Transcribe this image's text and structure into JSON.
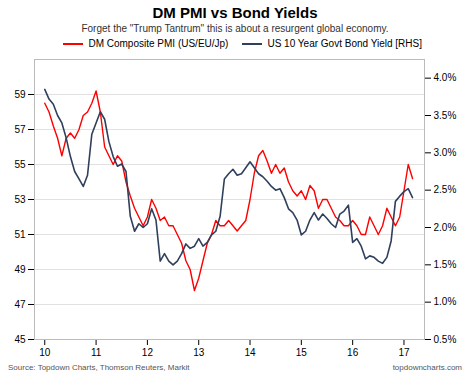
{
  "chart_data": {
    "type": "line",
    "title": "DM PMI vs Bond Yields",
    "subtitle": "Forget the \"Trump Tantrum\" this is about a resurgent global economy.",
    "annotations": [
      "Source: Topdown Charts, Thomson Reuters, Markit",
      "topdowncharts.com"
    ],
    "x": [
      10.0,
      10.083,
      10.167,
      10.25,
      10.333,
      10.417,
      10.5,
      10.583,
      10.667,
      10.75,
      10.833,
      10.917,
      11.0,
      11.083,
      11.167,
      11.25,
      11.333,
      11.417,
      11.5,
      11.583,
      11.667,
      11.75,
      11.833,
      11.917,
      12.0,
      12.083,
      12.167,
      12.25,
      12.333,
      12.417,
      12.5,
      12.583,
      12.667,
      12.75,
      12.833,
      12.917,
      13.0,
      13.083,
      13.167,
      13.25,
      13.333,
      13.417,
      13.5,
      13.583,
      13.667,
      13.75,
      13.833,
      13.917,
      14.0,
      14.083,
      14.167,
      14.25,
      14.333,
      14.417,
      14.5,
      14.583,
      14.667,
      14.75,
      14.833,
      14.917,
      15.0,
      15.083,
      15.167,
      15.25,
      15.333,
      15.417,
      15.5,
      15.583,
      15.667,
      15.75,
      15.833,
      15.917,
      16.0,
      16.083,
      16.167,
      16.25,
      16.333,
      16.417,
      16.5,
      16.583,
      16.667,
      16.75,
      16.833,
      16.917,
      17.0,
      17.083,
      17.167
    ],
    "xlim": [
      9.8,
      17.4
    ],
    "xticks": [
      10,
      11,
      12,
      13,
      14,
      15,
      16,
      17
    ],
    "ylim": [
      45,
      61
    ],
    "yticks": [
      45,
      47,
      49,
      51,
      53,
      55,
      57,
      59
    ],
    "y2lim": [
      0.5,
      4.25
    ],
    "y2ticks": [
      {
        "value": 0.5,
        "label": "0.5%"
      },
      {
        "value": 1.0,
        "label": "1.0%"
      },
      {
        "value": 1.5,
        "label": "1.5%"
      },
      {
        "value": 2.0,
        "label": "2.0%"
      },
      {
        "value": 2.5,
        "label": "2.5%"
      },
      {
        "value": 3.0,
        "label": "3.0%"
      },
      {
        "value": 3.5,
        "label": "3.5%"
      },
      {
        "value": 4.0,
        "label": "4.0%"
      }
    ],
    "grid": true,
    "legend": "upper right",
    "series": [
      {
        "name": "DM Composite PMI (US/EU/Jp)",
        "color": "#ff0000",
        "values": [
          58.5,
          58.0,
          57.2,
          56.5,
          55.5,
          56.5,
          56.8,
          56.5,
          57.0,
          57.8,
          58.0,
          58.5,
          59.2,
          58.0,
          56.0,
          55.5,
          55.0,
          55.5,
          55.2,
          54.0,
          53.2,
          52.5,
          52.0,
          51.5,
          52.0,
          53.0,
          52.5,
          51.8,
          52.0,
          51.5,
          51.5,
          51.0,
          50.5,
          49.5,
          49.0,
          47.8,
          48.5,
          49.5,
          50.5,
          51.0,
          51.8,
          51.5,
          51.5,
          51.8,
          51.5,
          51.2,
          51.5,
          51.8,
          53.0,
          54.5,
          55.5,
          55.8,
          55.2,
          54.5,
          55.0,
          54.5,
          54.8,
          54.0,
          53.5,
          53.2,
          53.5,
          53.0,
          53.8,
          53.5,
          52.5,
          53.0,
          53.0,
          52.5,
          52.0,
          51.8,
          51.5,
          51.5,
          51.8,
          51.5,
          51.0,
          51.0,
          52.0,
          51.5,
          51.0,
          51.5,
          52.5,
          52.0,
          51.5,
          52.0,
          53.5,
          55.0,
          54.2
        ]
      },
      {
        "name": "US 10 Year Govt Bond Yield [RHS]",
        "color": "#2f3f5c",
        "axis": "y2",
        "values": [
          3.85,
          3.72,
          3.65,
          3.5,
          3.4,
          3.2,
          2.95,
          2.75,
          2.65,
          2.55,
          2.7,
          3.25,
          3.4,
          3.55,
          3.45,
          3.15,
          2.95,
          2.82,
          2.85,
          2.75,
          2.15,
          1.95,
          2.05,
          2.0,
          2.05,
          2.25,
          2.1,
          1.55,
          1.65,
          1.55,
          1.5,
          1.55,
          1.65,
          1.78,
          1.72,
          1.75,
          1.85,
          1.75,
          1.8,
          1.9,
          1.95,
          2.15,
          2.65,
          2.72,
          2.78,
          2.7,
          2.72,
          2.8,
          2.88,
          2.8,
          2.72,
          2.68,
          2.62,
          2.55,
          2.5,
          2.52,
          2.4,
          2.25,
          2.2,
          2.1,
          1.9,
          1.95,
          2.1,
          2.2,
          2.1,
          2.18,
          2.12,
          2.05,
          2.0,
          2.18,
          2.22,
          2.3,
          1.8,
          1.85,
          1.75,
          1.58,
          1.62,
          1.6,
          1.55,
          1.52,
          1.6,
          1.82,
          2.35,
          2.42,
          2.48,
          2.52,
          2.4
        ]
      }
    ]
  }
}
